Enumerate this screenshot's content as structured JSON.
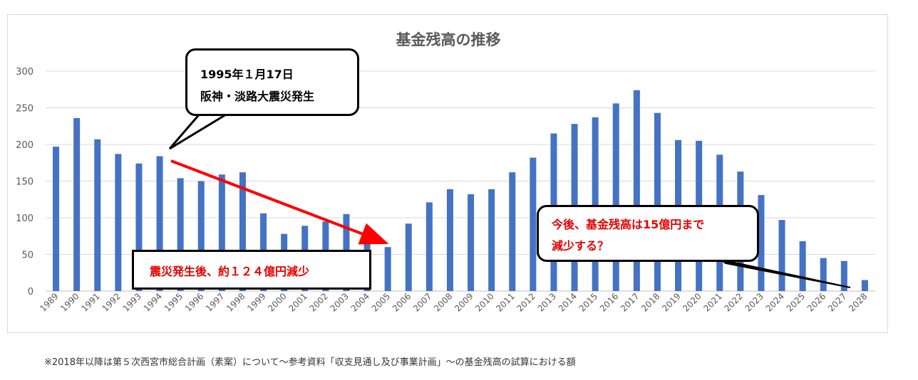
{
  "chart_data": {
    "type": "bar",
    "title": "基金残高の推移",
    "xlabel": "",
    "ylabel": "",
    "ylim": [
      0,
      300
    ],
    "yticks": [
      0,
      50,
      100,
      150,
      200,
      250,
      300
    ],
    "grid": true,
    "categories": [
      "1989",
      "1990",
      "1991",
      "1992",
      "1993",
      "1994",
      "1995",
      "1996",
      "1997",
      "1998",
      "1999",
      "2000",
      "2001",
      "2002",
      "2003",
      "2004",
      "2005",
      "2006",
      "2007",
      "2008",
      "2009",
      "2010",
      "2011",
      "2012",
      "2013",
      "2014",
      "2015",
      "2016",
      "2017",
      "2018",
      "2019",
      "2020",
      "2021",
      "2022",
      "2023",
      "2024",
      "2025",
      "2026",
      "2027",
      "2028"
    ],
    "values": [
      197,
      236,
      207,
      187,
      174,
      184,
      154,
      150,
      159,
      162,
      106,
      78,
      89,
      95,
      105,
      71,
      60,
      92,
      121,
      139,
      132,
      139,
      162,
      182,
      215,
      228,
      237,
      256,
      274,
      243,
      206,
      205,
      186,
      163,
      131,
      97,
      68,
      45,
      41,
      15
    ],
    "bar_color": "#4472c4"
  },
  "annotations": {
    "quake_line1": "1995年１月17日",
    "quake_line2": "阪神・淡路大震災発生",
    "after_quake": "震災発生後、約１２４億円減少",
    "future_line1": "今後、基金残高は15億円まで",
    "future_line2": "減少する？",
    "arrow_color": "#ff0000"
  },
  "footnote": "※2018年以降は第５次西宮市総合計画（素案）について～参考資料「収支見通し及び事業計画」～の基金残高の試算における額"
}
